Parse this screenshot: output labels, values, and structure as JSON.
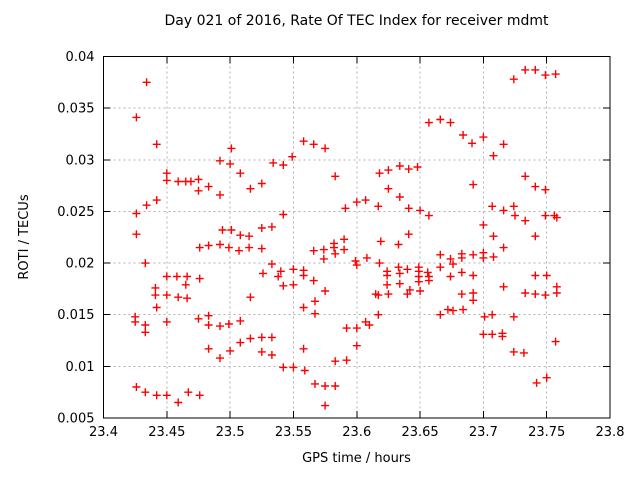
{
  "title": "Day 021 of 2016, Rate Of TEC Index for receiver mdmt",
  "chart_data": {
    "type": "scatter",
    "title": "Day 021 of 2016, Rate Of TEC Index for receiver mdmt",
    "xlabel": "GPS time / hours",
    "ylabel": "ROTI / TECUs",
    "xlim": [
      23.4,
      23.8
    ],
    "ylim": [
      0.005,
      0.04
    ],
    "x_ticks": [
      23.4,
      23.45,
      23.5,
      23.55,
      23.6,
      23.65,
      23.7,
      23.75,
      23.8
    ],
    "x_tick_labels": [
      "23.4",
      "23.45",
      "23.5",
      "23.55",
      "23.6",
      "23.65",
      "23.7",
      "23.75",
      "23.8"
    ],
    "y_ticks": [
      0.005,
      0.01,
      0.015,
      0.02,
      0.025,
      0.03,
      0.035,
      0.04
    ],
    "y_tick_labels": [
      "0.005",
      "0.01",
      "0.015",
      "0.02",
      "0.025",
      "0.03",
      "0.035",
      "0.04"
    ],
    "grid": true,
    "legend": "none",
    "marker": "plus",
    "marker_color": "#ff0000",
    "grid_color": "#b0b0b0",
    "border_color": "#000000",
    "series": [
      {
        "name": "ROTI",
        "points": [
          [
            23.434,
            0.0375
          ],
          [
            23.426,
            0.0341
          ],
          [
            23.442,
            0.0315
          ],
          [
            23.501,
            0.0311
          ],
          [
            23.492,
            0.0299
          ],
          [
            23.5,
            0.0296
          ],
          [
            23.45,
            0.0287
          ],
          [
            23.508,
            0.0287
          ],
          [
            23.558,
            0.0318
          ],
          [
            23.566,
            0.0315
          ],
          [
            23.575,
            0.0311
          ],
          [
            23.549,
            0.0303
          ],
          [
            23.534,
            0.0297
          ],
          [
            23.542,
            0.0295
          ],
          [
            23.583,
            0.0284
          ],
          [
            23.618,
            0.0287
          ],
          [
            23.625,
            0.029
          ],
          [
            23.634,
            0.0294
          ],
          [
            23.641,
            0.0291
          ],
          [
            23.648,
            0.0293
          ],
          [
            23.657,
            0.0336
          ],
          [
            23.666,
            0.0339
          ],
          [
            23.674,
            0.0336
          ],
          [
            23.724,
            0.0378
          ],
          [
            23.733,
            0.0387
          ],
          [
            23.741,
            0.0387
          ],
          [
            23.749,
            0.0382
          ],
          [
            23.757,
            0.0383
          ],
          [
            23.684,
            0.0324
          ],
          [
            23.691,
            0.0316
          ],
          [
            23.7,
            0.0322
          ],
          [
            23.708,
            0.0304
          ],
          [
            23.716,
            0.0315
          ],
          [
            23.733,
            0.0284
          ],
          [
            23.45,
            0.028
          ],
          [
            23.459,
            0.0279
          ],
          [
            23.465,
            0.0279
          ],
          [
            23.469,
            0.0279
          ],
          [
            23.475,
            0.0281
          ],
          [
            23.475,
            0.027
          ],
          [
            23.483,
            0.0274
          ],
          [
            23.492,
            0.0266
          ],
          [
            23.442,
            0.0261
          ],
          [
            23.434,
            0.0256
          ],
          [
            23.426,
            0.0248
          ],
          [
            23.516,
            0.0272
          ],
          [
            23.525,
            0.0277
          ],
          [
            23.426,
            0.0228
          ],
          [
            23.494,
            0.0232
          ],
          [
            23.501,
            0.0232
          ],
          [
            23.508,
            0.0227
          ],
          [
            23.515,
            0.0226
          ],
          [
            23.525,
            0.0234
          ],
          [
            23.533,
            0.0235
          ],
          [
            23.476,
            0.0215
          ],
          [
            23.483,
            0.0217
          ],
          [
            23.492,
            0.0218
          ],
          [
            23.499,
            0.0215
          ],
          [
            23.507,
            0.0212
          ],
          [
            23.515,
            0.0215
          ],
          [
            23.525,
            0.0214
          ],
          [
            23.433,
            0.02
          ],
          [
            23.533,
            0.0199
          ],
          [
            23.45,
            0.0187
          ],
          [
            23.458,
            0.0187
          ],
          [
            23.466,
            0.0187
          ],
          [
            23.476,
            0.0185
          ],
          [
            23.465,
            0.0179
          ],
          [
            23.526,
            0.019
          ],
          [
            23.441,
            0.0176
          ],
          [
            23.441,
            0.0169
          ],
          [
            23.625,
            0.0272
          ],
          [
            23.634,
            0.0264
          ],
          [
            23.6,
            0.0259
          ],
          [
            23.607,
            0.0261
          ],
          [
            23.591,
            0.0253
          ],
          [
            23.617,
            0.0255
          ],
          [
            23.641,
            0.0253
          ],
          [
            23.542,
            0.0247
          ],
          [
            23.65,
            0.0251
          ],
          [
            23.657,
            0.0246
          ],
          [
            23.641,
            0.0228
          ],
          [
            23.619,
            0.0221
          ],
          [
            23.633,
            0.0218
          ],
          [
            23.618,
            0.02
          ],
          [
            23.582,
            0.0219
          ],
          [
            23.59,
            0.0223
          ],
          [
            23.59,
            0.0213
          ],
          [
            23.566,
            0.0212
          ],
          [
            23.574,
            0.0213
          ],
          [
            23.582,
            0.0215
          ],
          [
            23.583,
            0.0209
          ],
          [
            23.574,
            0.0204
          ],
          [
            23.599,
            0.0202
          ],
          [
            23.6,
            0.0198
          ],
          [
            23.608,
            0.0205
          ],
          [
            23.54,
            0.0192
          ],
          [
            23.55,
            0.0194
          ],
          [
            23.558,
            0.0193
          ],
          [
            23.538,
            0.0187
          ],
          [
            23.558,
            0.0188
          ],
          [
            23.566,
            0.0183
          ],
          [
            23.542,
            0.0178
          ],
          [
            23.55,
            0.0179
          ],
          [
            23.575,
            0.0173
          ],
          [
            23.624,
            0.0192
          ],
          [
            23.624,
            0.0188
          ],
          [
            23.633,
            0.0196
          ],
          [
            23.634,
            0.019
          ],
          [
            23.64,
            0.0194
          ],
          [
            23.649,
            0.0196
          ],
          [
            23.649,
            0.0192
          ],
          [
            23.656,
            0.0191
          ],
          [
            23.657,
            0.0187
          ],
          [
            23.649,
            0.0187
          ],
          [
            23.649,
            0.0182
          ],
          [
            23.657,
            0.0183
          ],
          [
            23.624,
            0.0179
          ],
          [
            23.634,
            0.018
          ],
          [
            23.625,
            0.017
          ],
          [
            23.642,
            0.0174
          ],
          [
            23.65,
            0.0173
          ],
          [
            23.617,
            0.0169
          ],
          [
            23.692,
            0.0276
          ],
          [
            23.741,
            0.0274
          ],
          [
            23.749,
            0.0271
          ],
          [
            23.707,
            0.0255
          ],
          [
            23.716,
            0.0251
          ],
          [
            23.724,
            0.0255
          ],
          [
            23.725,
            0.0246
          ],
          [
            23.733,
            0.0241
          ],
          [
            23.749,
            0.0246
          ],
          [
            23.756,
            0.0246
          ],
          [
            23.758,
            0.0244
          ],
          [
            23.7,
            0.0237
          ],
          [
            23.708,
            0.0226
          ],
          [
            23.741,
            0.0226
          ],
          [
            23.716,
            0.0215
          ],
          [
            23.666,
            0.0208
          ],
          [
            23.674,
            0.0204
          ],
          [
            23.683,
            0.0209
          ],
          [
            23.683,
            0.0205
          ],
          [
            23.692,
            0.0208
          ],
          [
            23.7,
            0.021
          ],
          [
            23.7,
            0.0205
          ],
          [
            23.708,
            0.0206
          ],
          [
            23.676,
            0.0199
          ],
          [
            23.666,
            0.0196
          ],
          [
            23.683,
            0.0191
          ],
          [
            23.674,
            0.0187
          ],
          [
            23.692,
            0.0188
          ],
          [
            23.741,
            0.0188
          ],
          [
            23.75,
            0.0188
          ],
          [
            23.716,
            0.0177
          ],
          [
            23.733,
            0.0171
          ],
          [
            23.758,
            0.0177
          ],
          [
            23.758,
            0.0171
          ],
          [
            23.683,
            0.017
          ],
          [
            23.692,
            0.0171
          ],
          [
            23.692,
            0.0164
          ],
          [
            23.45,
            0.0169
          ],
          [
            23.459,
            0.0167
          ],
          [
            23.466,
            0.0166
          ],
          [
            23.516,
            0.0167
          ],
          [
            23.442,
            0.0157
          ],
          [
            23.425,
            0.0148
          ],
          [
            23.425,
            0.0143
          ],
          [
            23.433,
            0.014
          ],
          [
            23.433,
            0.0133
          ],
          [
            23.45,
            0.0143
          ],
          [
            23.475,
            0.0146
          ],
          [
            23.483,
            0.0149
          ],
          [
            23.483,
            0.014
          ],
          [
            23.492,
            0.0139
          ],
          [
            23.499,
            0.0141
          ],
          [
            23.508,
            0.0144
          ],
          [
            23.516,
            0.0127
          ],
          [
            23.525,
            0.0128
          ],
          [
            23.483,
            0.0117
          ],
          [
            23.5,
            0.0115
          ],
          [
            23.492,
            0.0108
          ],
          [
            23.508,
            0.0123
          ],
          [
            23.525,
            0.0114
          ],
          [
            23.426,
            0.008
          ],
          [
            23.433,
            0.0075
          ],
          [
            23.442,
            0.0072
          ],
          [
            23.45,
            0.0072
          ],
          [
            23.459,
            0.0065
          ],
          [
            23.467,
            0.0075
          ],
          [
            23.476,
            0.0072
          ],
          [
            23.567,
            0.0163
          ],
          [
            23.558,
            0.0157
          ],
          [
            23.567,
            0.0151
          ],
          [
            23.615,
            0.017
          ],
          [
            23.64,
            0.017
          ],
          [
            23.533,
            0.0128
          ],
          [
            23.533,
            0.0111
          ],
          [
            23.558,
            0.0117
          ],
          [
            23.592,
            0.0137
          ],
          [
            23.6,
            0.0137
          ],
          [
            23.607,
            0.0143
          ],
          [
            23.61,
            0.014
          ],
          [
            23.617,
            0.015
          ],
          [
            23.6,
            0.012
          ],
          [
            23.583,
            0.0105
          ],
          [
            23.592,
            0.0106
          ],
          [
            23.542,
            0.0099
          ],
          [
            23.55,
            0.0099
          ],
          [
            23.559,
            0.0096
          ],
          [
            23.567,
            0.0083
          ],
          [
            23.575,
            0.0081
          ],
          [
            23.583,
            0.0081
          ],
          [
            23.575,
            0.0062
          ],
          [
            23.666,
            0.015
          ],
          [
            23.672,
            0.0155
          ],
          [
            23.676,
            0.0154
          ],
          [
            23.684,
            0.0155
          ],
          [
            23.701,
            0.0148
          ],
          [
            23.707,
            0.015
          ],
          [
            23.724,
            0.0148
          ],
          [
            23.741,
            0.017
          ],
          [
            23.749,
            0.0169
          ],
          [
            23.7,
            0.0131
          ],
          [
            23.707,
            0.0131
          ],
          [
            23.715,
            0.0132
          ],
          [
            23.715,
            0.0129
          ],
          [
            23.724,
            0.0114
          ],
          [
            23.732,
            0.0113
          ],
          [
            23.757,
            0.0124
          ],
          [
            23.75,
            0.0089
          ],
          [
            23.742,
            0.0084
          ]
        ]
      }
    ]
  }
}
